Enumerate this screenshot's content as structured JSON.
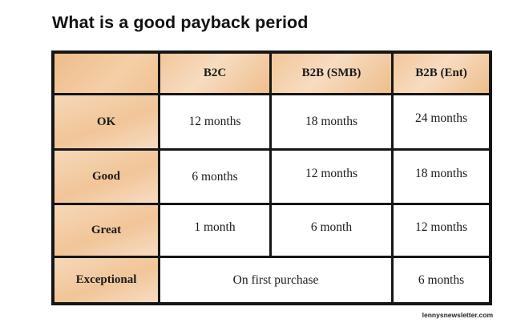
{
  "title": "What is a good payback period",
  "table": {
    "columns": [
      "B2C",
      "B2B (SMB)",
      "B2B (Ent)"
    ],
    "rows": [
      {
        "label": "OK",
        "values": [
          "12 months",
          "18 months",
          "24 months"
        ]
      },
      {
        "label": "Good",
        "values": [
          "6 months",
          "12 months",
          "18 months"
        ]
      },
      {
        "label": "Great",
        "values": [
          "1 month",
          "6 month",
          "12 months"
        ]
      },
      {
        "label": "Exceptional",
        "merged_value": "On first purchase",
        "last_value": "6 months"
      }
    ]
  },
  "footer": "lennysnewsletter.com",
  "colors": {
    "header_fill": "#f2c79a",
    "border": "#161616"
  }
}
